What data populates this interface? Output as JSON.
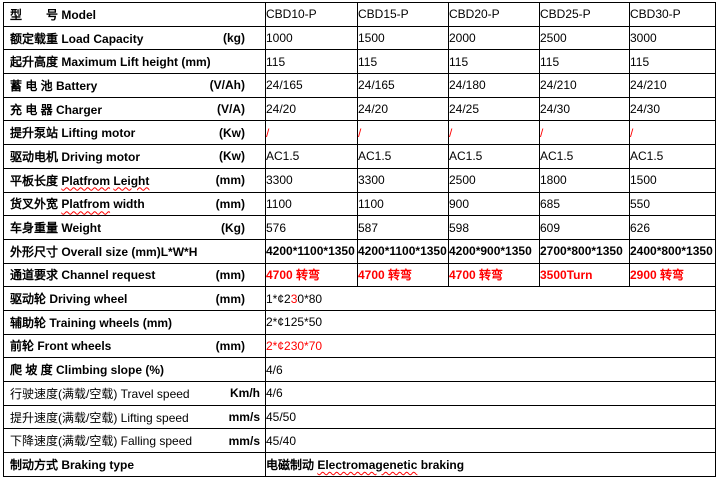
{
  "colors": {
    "text": "#000000",
    "highlight_red": "#ff0000",
    "border": "#000000",
    "background": "#ffffff"
  },
  "table": {
    "rows": [
      {
        "name": "model",
        "label": {
          "zh": "型　　号",
          "en": "Model",
          "unit": "",
          "tab": false,
          "bold": true
        },
        "values": [
          "CBD10-P",
          "CBD15-P",
          "CBD20-P",
          "CBD25-P",
          "CBD30-P"
        ],
        "value_style": {}
      },
      {
        "name": "load-capacity",
        "label": {
          "zh": "额定载重",
          "en": "Load Capacity",
          "unit": "(kg)",
          "tab": true,
          "bold": true
        },
        "values": [
          "1000",
          "1500",
          "2000",
          "2500",
          "3000"
        ],
        "value_style": {}
      },
      {
        "name": "max-lift-height",
        "label": {
          "zh": "起升高度",
          "en": "Maximum Lift height (mm)",
          "unit": "",
          "tab": false,
          "bold": true
        },
        "values": [
          "115",
          "115",
          "115",
          "115",
          "115"
        ],
        "value_style": {}
      },
      {
        "name": "battery",
        "label": {
          "zh": "蓄 电 池",
          "en": "Battery",
          "unit": "(V/Ah)",
          "tab": true,
          "bold": true
        },
        "values": [
          "24/165",
          "24/165",
          "24/180",
          "24/210",
          "24/210"
        ],
        "value_style": {}
      },
      {
        "name": "charger",
        "label": {
          "zh": "充 电 器",
          "en": "Charger",
          "unit": "(V/A)",
          "tab": true,
          "bold": true
        },
        "values": [
          "24/20",
          "24/20",
          "24/25",
          "24/30",
          "24/30"
        ],
        "value_style": {}
      },
      {
        "name": "lifting-motor",
        "label": {
          "zh": "提升泵站",
          "en": "Lifting motor",
          "unit": "(Kw)",
          "tab": true,
          "bold": true
        },
        "values": [
          "/",
          "/",
          "/",
          "/",
          "/"
        ],
        "value_style": {
          "red": true
        }
      },
      {
        "name": "driving-motor",
        "label": {
          "zh": "驱动电机",
          "en": "Driving motor",
          "unit": "(Kw)",
          "tab": true,
          "bold": true
        },
        "values": [
          "AC1.5",
          "AC1.5",
          "AC1.5",
          "AC1.5",
          "AC1.5"
        ],
        "value_style": {}
      },
      {
        "name": "platform-length",
        "label": {
          "zh": "平板长度",
          "en_parts": [
            {
              "t": "Platfrom",
              "wavy": true
            },
            {
              "t": " "
            },
            {
              "t": "Leight",
              "wavy": true
            }
          ],
          "unit": "(mm)",
          "tab": true,
          "bold": true
        },
        "values": [
          "3300",
          "3300",
          "2500",
          "1800",
          "1500"
        ],
        "value_style": {}
      },
      {
        "name": "platform-width",
        "label": {
          "zh": "货叉外宽",
          "en_parts": [
            {
              "t": "Platfrom",
              "wavy": true
            },
            {
              "t": " width"
            }
          ],
          "unit": "(mm)",
          "tab": true,
          "bold": true
        },
        "values": [
          "1100",
          "1100",
          "900",
          "685",
          "550"
        ],
        "value_style": {}
      },
      {
        "name": "weight",
        "label": {
          "zh": "车身重量",
          "en": "Weight",
          "unit": "(Kg)",
          "tab": true,
          "bold": true
        },
        "values": [
          "576",
          "587",
          "598",
          "609",
          "626"
        ],
        "value_style": {}
      },
      {
        "name": "overall-size",
        "label": {
          "zh": "外形尺寸",
          "en": "Overall size (mm)L*W*H",
          "unit": "",
          "tab": false,
          "bold": true
        },
        "values": [
          "4200*1100*1350",
          "4200*1100*1350",
          "4200*900*1350",
          "2700*800*1350",
          "2400*800*1350"
        ],
        "value_style": {
          "small": true,
          "bold": true
        }
      },
      {
        "name": "channel-request",
        "label": {
          "zh": "通道要求",
          "en": "Channel request",
          "unit": "(mm)",
          "tab": true,
          "bold": true
        },
        "values": [
          "4700 转弯",
          "4700 转弯",
          "4700 转弯",
          "3500Turn",
          "2900 转弯"
        ],
        "value_style": {
          "red": true,
          "bold": true
        }
      },
      {
        "name": "driving-wheel",
        "label": {
          "zh": "驱动轮",
          "en": "Driving wheel",
          "unit": "(mm)",
          "tab": true,
          "bold": true
        },
        "merged": true,
        "value_parts": [
          {
            "t": "1*¢2"
          },
          {
            "t": "3",
            "red": true
          },
          {
            "t": "0*80"
          }
        ],
        "value_style": {}
      },
      {
        "name": "training-wheels",
        "label": {
          "zh": "辅助轮",
          "en": "Training wheels (mm)",
          "unit": "",
          "tab": false,
          "bold": true
        },
        "merged": true,
        "value": "2*¢125*50",
        "value_style": {}
      },
      {
        "name": "front-wheels",
        "label": {
          "zh": "前轮",
          "en": "Front wheels",
          "unit": "(mm)",
          "tab": true,
          "bold": true
        },
        "merged": true,
        "value": "2*¢230*70",
        "value_style": {
          "red": true
        }
      },
      {
        "name": "climbing-slope",
        "label": {
          "zh": "爬 坡 度",
          "en": "Climbing slope (%)",
          "unit": "",
          "tab": false,
          "bold": true
        },
        "merged": true,
        "value": "4/6",
        "value_style": {}
      },
      {
        "name": "travel-speed",
        "label": {
          "zh": "行驶速度(满载/空载)",
          "en": "Travel speed",
          "unit": "Km/h",
          "tab": true,
          "tight": true,
          "bold": false
        },
        "merged": true,
        "value": "4/6",
        "value_style": {
          "indent": true
        }
      },
      {
        "name": "lifting-speed",
        "label": {
          "zh": "提升速度(满载/空载)",
          "en": "Lifting speed",
          "unit": "mm/s",
          "tab": true,
          "tight": true,
          "bold": false
        },
        "merged": true,
        "value": "45/50",
        "value_style": {
          "indent": true
        }
      },
      {
        "name": "falling-speed",
        "label": {
          "zh": "下降速度(满载/空载)",
          "en": "Falling speed",
          "unit": "mm/s",
          "tab": true,
          "tight": true,
          "bold": false
        },
        "merged": true,
        "value": "45/40",
        "value_style": {
          "indent": true
        }
      },
      {
        "name": "braking-type",
        "label": {
          "zh": "制动方式",
          "en": "Braking type",
          "unit": "",
          "tab": false,
          "bold": true
        },
        "merged": true,
        "value_parts": [
          {
            "t": "电磁制动 "
          },
          {
            "t": "Electromagenetic",
            "wavy": true
          },
          {
            "t": " braking"
          }
        ],
        "value_style": {
          "bold": true
        }
      }
    ]
  }
}
